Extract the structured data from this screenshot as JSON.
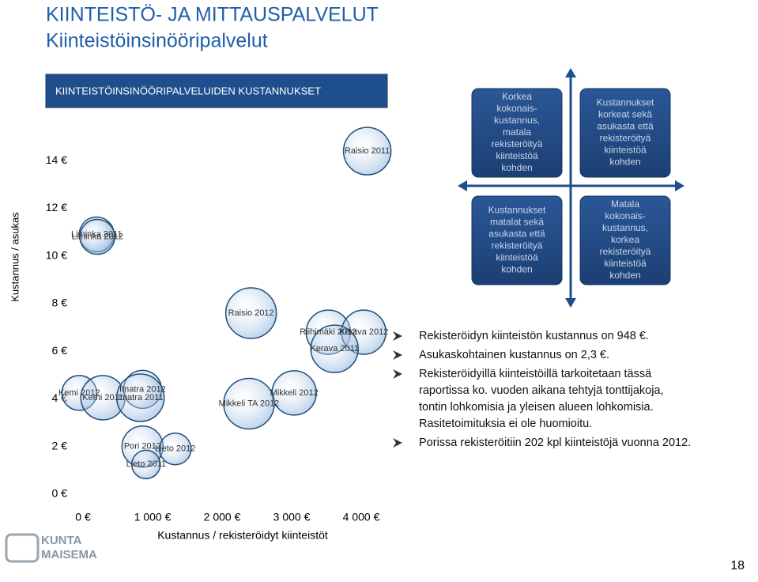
{
  "header": {
    "title": "KIINTEISTÖ- JA MITTAUSPALVELUT",
    "subtitle": "Kiinteistöinsinööripalvelut"
  },
  "chart_data": {
    "type": "bubble",
    "title": "KIINTEISTÖINSINÖÖRIPALVELUIDEN KUSTANNUKSET",
    "x_label": "Kustannus / rekisteröidyt kiinteistöt",
    "y_label": "Kustannus / asukas",
    "labels": [
      "Raisio 2011",
      "Liminka 2011",
      "Liminka 2012",
      "Raisio 2012",
      "Riihimäki 2012",
      "Kerava 2012",
      "Kerava 2011",
      "Mikkeli 2012",
      "Mikkeli TA 2012",
      "Kemi 2012",
      "Kemi 2011",
      "Imatra 2012",
      "Imatra 2011",
      "Pori 2012",
      "Lieto 2012",
      "Lieto 2011"
    ],
    "x": [
      4200,
      310,
      320,
      2530,
      3640,
      4150,
      3730,
      3150,
      2500,
      60,
      400,
      970,
      940,
      970,
      1440,
      1020
    ],
    "values": [
      14.4,
      10.9,
      10.8,
      7.6,
      6.8,
      6.8,
      6.1,
      4.25,
      3.8,
      4.25,
      4.05,
      4.4,
      4.05,
      2.0,
      1.9,
      1.25
    ],
    "sizes": [
      30,
      22,
      22,
      32,
      28,
      28,
      30,
      28,
      32,
      22,
      28,
      24,
      30,
      26,
      20,
      18
    ],
    "color": "#1f4e79",
    "xlim": [
      0,
      4500
    ],
    "ylim": [
      0,
      15
    ],
    "xticks": [
      {
        "value": 0,
        "label": "0 €"
      },
      {
        "value": 1000,
        "label": "1 000 €"
      },
      {
        "value": 2000,
        "label": "2 000 €"
      },
      {
        "value": 3000,
        "label": "3 000 €"
      },
      {
        "value": 4000,
        "label": "4 000 €"
      }
    ],
    "yticks": [
      {
        "value": 0,
        "label": "0 €"
      },
      {
        "value": 2,
        "label": "2 €"
      },
      {
        "value": 4,
        "label": "4 €"
      },
      {
        "value": 6,
        "label": "6 €"
      },
      {
        "value": 8,
        "label": "8 €"
      },
      {
        "value": 10,
        "label": "10 €"
      },
      {
        "value": 12,
        "label": "12 €"
      },
      {
        "value": 14,
        "label": "14 €"
      }
    ]
  },
  "quadrants": [
    [
      "Korkea",
      "kokonais-",
      "kustannus,",
      "matala",
      "rekisteröityä",
      "kiinteistöä",
      "kohden"
    ],
    [
      "Kustannukset",
      "korkeat sekä",
      "asukasta että",
      "rekisteröityä",
      "kiinteistöä",
      "kohden"
    ],
    [
      "Kustannukset",
      "matalat sekä",
      "asukasta että",
      "rekisteröityä",
      "kiinteistöä",
      "kohden"
    ],
    [
      "Matala",
      "kokonais-",
      "kustannus,",
      "korkea",
      "rekisteröityä",
      "kiinteistöä",
      "kohden"
    ]
  ],
  "bullets": [
    [
      "Rekisteröidyn kiinteistön kustannus on 948 €."
    ],
    [
      "Asukaskohtainen kustannus on 2,3 €."
    ],
    [
      "Rekisteröidyillä kiinteistöillä tarkoitetaan tässä",
      "raportissa ko. vuoden aikana tehtyjä tonttijakoja,",
      "tontin lohkomisia ja yleisen alueen lohkomisia.",
      "Rasitetoimituksia ei ole huomioitu."
    ],
    [
      "Porissa rekisteröitiin 202 kpl kiinteistöjä vuonna 2012."
    ]
  ],
  "logo": [
    "KUNTA",
    "MAISEMA"
  ],
  "page_number": "18"
}
